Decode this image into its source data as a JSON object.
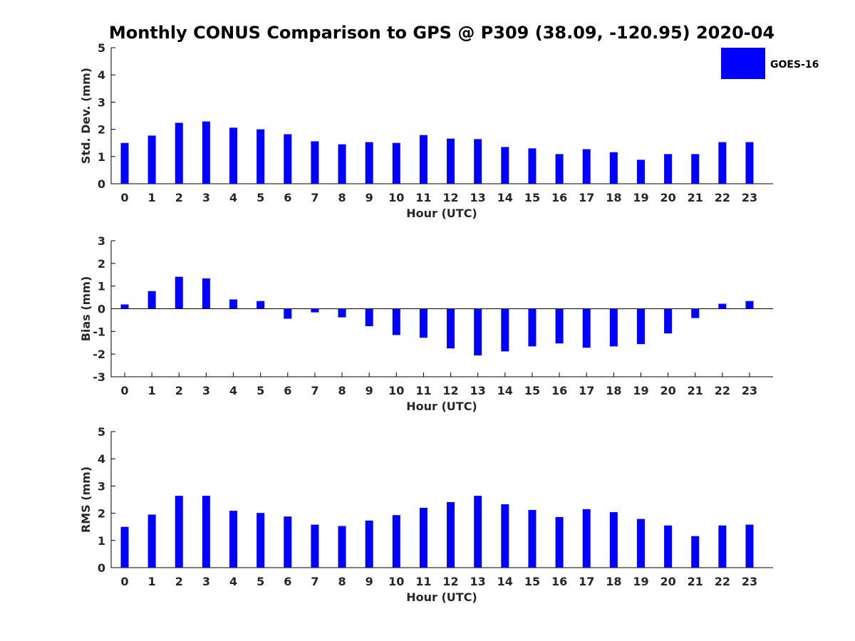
{
  "title": "Monthly CONUS Comparison to GPS @ P309 (38.09, -120.95) 2020-04",
  "legend": {
    "label": "GOES-16",
    "color": "#0000ff"
  },
  "chart_data": [
    {
      "type": "bar",
      "name": "std-dev",
      "ylabel": "Std. Dev. (mm)",
      "xlabel": "Hour (UTC)",
      "ylim": [
        0,
        5
      ],
      "yticks": [
        0,
        1,
        2,
        3,
        4,
        5
      ],
      "categories": [
        "0",
        "1",
        "2",
        "3",
        "4",
        "5",
        "6",
        "7",
        "8",
        "9",
        "10",
        "11",
        "12",
        "13",
        "14",
        "15",
        "16",
        "17",
        "18",
        "19",
        "20",
        "21",
        "22",
        "23"
      ],
      "series": [
        {
          "name": "GOES-16",
          "color": "#0000ff",
          "values": [
            1.5,
            1.77,
            2.24,
            2.29,
            2.06,
            2.0,
            1.82,
            1.56,
            1.45,
            1.53,
            1.5,
            1.79,
            1.66,
            1.64,
            1.35,
            1.3,
            1.09,
            1.27,
            1.16,
            0.88,
            1.09,
            1.09,
            1.53,
            1.53
          ]
        }
      ]
    },
    {
      "type": "bar",
      "name": "bias",
      "ylabel": "Bias (mm)",
      "xlabel": "Hour (UTC)",
      "ylim": [
        -3,
        3
      ],
      "yticks": [
        -3,
        -2,
        -1,
        0,
        1,
        2,
        3
      ],
      "categories": [
        "0",
        "1",
        "2",
        "3",
        "4",
        "5",
        "6",
        "7",
        "8",
        "9",
        "10",
        "11",
        "12",
        "13",
        "14",
        "15",
        "16",
        "17",
        "18",
        "19",
        "20",
        "21",
        "22",
        "23"
      ],
      "series": [
        {
          "name": "GOES-16",
          "color": "#0000ff",
          "values": [
            0.19,
            0.78,
            1.41,
            1.34,
            0.41,
            0.34,
            -0.44,
            -0.16,
            -0.38,
            -0.77,
            -1.16,
            -1.28,
            -1.75,
            -2.06,
            -1.88,
            -1.66,
            -1.53,
            -1.72,
            -1.66,
            -1.56,
            -1.09,
            -0.41,
            0.22,
            0.34
          ]
        }
      ]
    },
    {
      "type": "bar",
      "name": "rms",
      "ylabel": "RMS (mm)",
      "xlabel": "Hour (UTC)",
      "ylim": [
        0,
        5
      ],
      "yticks": [
        0,
        1,
        2,
        3,
        4,
        5
      ],
      "categories": [
        "0",
        "1",
        "2",
        "3",
        "4",
        "5",
        "6",
        "7",
        "8",
        "9",
        "10",
        "11",
        "12",
        "13",
        "14",
        "15",
        "16",
        "17",
        "18",
        "19",
        "20",
        "21",
        "22",
        "23"
      ],
      "series": [
        {
          "name": "GOES-16",
          "color": "#0000ff",
          "values": [
            1.5,
            1.95,
            2.64,
            2.64,
            2.09,
            2.01,
            1.88,
            1.58,
            1.53,
            1.73,
            1.93,
            2.2,
            2.41,
            2.64,
            2.33,
            2.12,
            1.86,
            2.15,
            2.04,
            1.79,
            1.55,
            1.16,
            1.55,
            1.58
          ]
        }
      ]
    }
  ]
}
